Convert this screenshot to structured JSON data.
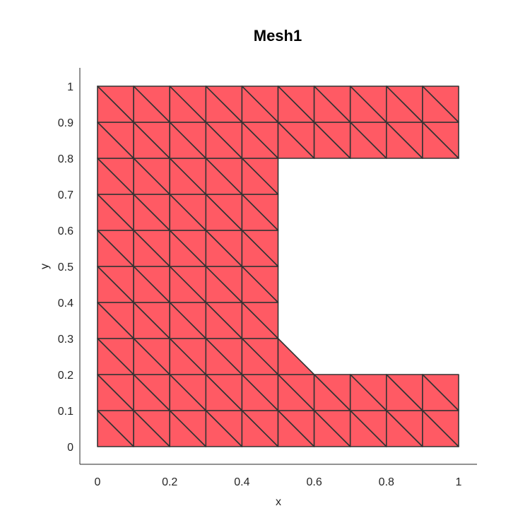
{
  "chart_data": {
    "type": "mesh",
    "title": "Mesh1",
    "xlabel": "x",
    "ylabel": "y",
    "xlim": [
      -0.05,
      1.05
    ],
    "ylim": [
      -0.05,
      1.05
    ],
    "xticks": [
      0,
      0.2,
      0.4,
      0.6,
      0.8,
      1
    ],
    "xtick_labels": [
      "0",
      "0.2",
      "0.4",
      "0.6",
      "0.8",
      "1"
    ],
    "yticks": [
      0,
      0.1,
      0.2,
      0.3,
      0.4,
      0.5,
      0.6,
      0.7,
      0.8,
      0.9,
      1
    ],
    "ytick_labels": [
      "0",
      "0.1",
      "0.2",
      "0.3",
      "0.4",
      "0.5",
      "0.6",
      "0.7",
      "0.8",
      "0.9",
      "1"
    ],
    "face_color": "#ff5a64",
    "edge_color": "#333333",
    "grid_spacing": 0.1,
    "diagonal": "top-left to bottom-right",
    "regions": {
      "bottom_arm": {
        "x": [
          0,
          1
        ],
        "y": [
          0,
          0.2
        ]
      },
      "left_column": {
        "x": [
          0,
          0.5
        ],
        "y": [
          0.2,
          0.8
        ]
      },
      "top_arm": {
        "x": [
          0,
          1
        ],
        "y": [
          0.8,
          1
        ]
      },
      "chamfer": {
        "vertices": [
          [
            0.5,
            0.2
          ],
          [
            0.6,
            0.2
          ],
          [
            0.5,
            0.3
          ]
        ]
      }
    }
  }
}
